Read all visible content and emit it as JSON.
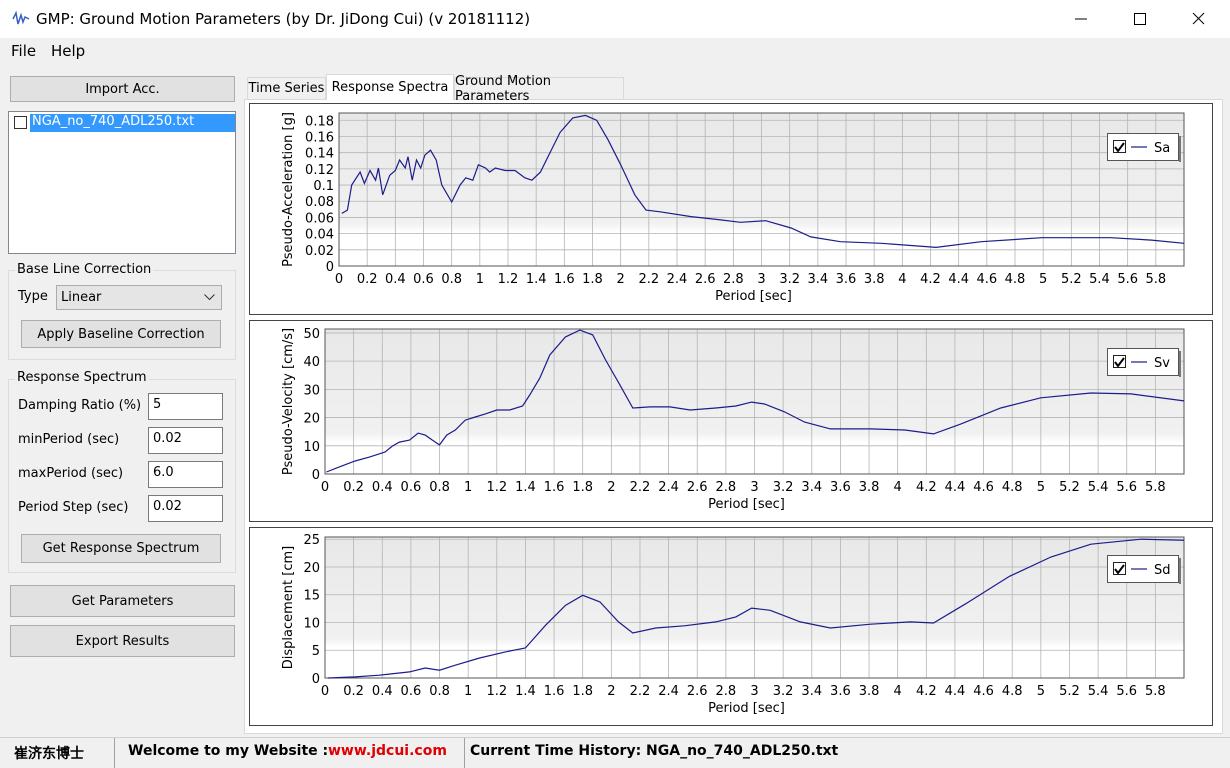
{
  "window": {
    "title": "GMP: Ground Motion Parameters (by Dr. JiDong Cui) (v 20181112)"
  },
  "menu": [
    "File",
    "Help"
  ],
  "left": {
    "import_button": "Import Acc.",
    "file_list": [
      "NGA_no_740_ADL250.txt"
    ],
    "baseline": {
      "title": "Base Line Correction",
      "type_label": "Type",
      "type_value": "Linear",
      "button": "Apply Baseline Correction"
    },
    "spectrum": {
      "title": "Response Spectrum",
      "fields": [
        {
          "label": "Damping Ratio (%)",
          "value": "5"
        },
        {
          "label": "minPeriod (sec)",
          "value": "0.02"
        },
        {
          "label": "maxPeriod (sec)",
          "value": "6.0"
        },
        {
          "label": "Period Step (sec)",
          "value": "0.02"
        }
      ],
      "button": "Get Response Spectrum"
    },
    "get_parameters": "Get Parameters",
    "export": "Export Results"
  },
  "tabs": [
    "Time Series",
    "Response Spectra",
    "Ground Motion Parameters"
  ],
  "active_tab": 1,
  "status": [
    "崔济东博士",
    "Welcome to my Website :",
    "www.jdcui.com",
    "Current Time History: NGA_no_740_ADL250.txt"
  ],
  "chart_data": [
    {
      "type": "line",
      "x_label": "Period [sec]",
      "y_label": "Pseudo-Acceleration [g]",
      "grid": true,
      "legend": "right",
      "x": [
        0.02,
        0.06,
        0.09,
        0.15,
        0.18,
        0.22,
        0.26,
        0.28,
        0.31,
        0.36,
        0.4,
        0.43,
        0.47,
        0.49,
        0.52,
        0.55,
        0.58,
        0.61,
        0.65,
        0.69,
        0.73,
        0.8,
        0.86,
        0.9,
        0.95,
        0.99,
        1.04,
        1.07,
        1.11,
        1.18,
        1.25,
        1.32,
        1.37,
        1.43,
        1.49,
        1.57,
        1.66,
        1.75,
        1.83,
        1.91,
        2.0,
        2.1,
        2.18,
        2.28,
        2.5,
        2.71,
        2.85,
        3.03,
        3.21,
        3.35,
        3.56,
        3.85,
        4.24,
        4.56,
        4.99,
        5.48,
        5.77,
        6.0
      ],
      "series": [
        {
          "name": "Sa",
          "color": "#1c1c8c",
          "values": [
            0.065,
            0.069,
            0.1,
            0.116,
            0.102,
            0.118,
            0.106,
            0.121,
            0.088,
            0.112,
            0.118,
            0.131,
            0.121,
            0.135,
            0.106,
            0.131,
            0.121,
            0.137,
            0.143,
            0.131,
            0.1,
            0.079,
            0.1,
            0.109,
            0.106,
            0.125,
            0.121,
            0.116,
            0.121,
            0.118,
            0.118,
            0.109,
            0.106,
            0.116,
            0.137,
            0.165,
            0.183,
            0.186,
            0.18,
            0.156,
            0.125,
            0.088,
            0.069,
            0.067,
            0.061,
            0.057,
            0.054,
            0.056,
            0.047,
            0.036,
            0.03,
            0.028,
            0.023,
            0.03,
            0.035,
            0.035,
            0.032,
            0.028
          ]
        }
      ],
      "xlim": [
        0,
        6
      ],
      "ylim": [
        0,
        0.189
      ],
      "xticks": [
        0,
        0.2,
        0.4,
        0.6,
        0.8,
        1,
        1.2,
        1.4,
        1.6,
        1.8,
        2,
        2.2,
        2.4,
        2.6,
        2.8,
        3,
        3.2,
        3.4,
        3.6,
        3.8,
        4,
        4.2,
        4.4,
        4.6,
        4.8,
        5,
        5.2,
        5.4,
        5.6,
        5.8
      ],
      "yticks": [
        0,
        0.02,
        0.04,
        0.06,
        0.08,
        0.1,
        0.12,
        0.14,
        0.16,
        0.18
      ]
    },
    {
      "type": "line",
      "x_label": "Period [sec]",
      "y_label": "Pseudo-Velocity [cm/s]",
      "grid": true,
      "legend": "right",
      "x": [
        0.01,
        0.1,
        0.21,
        0.31,
        0.42,
        0.47,
        0.52,
        0.59,
        0.65,
        0.7,
        0.75,
        0.8,
        0.85,
        0.91,
        0.98,
        1.05,
        1.12,
        1.2,
        1.29,
        1.38,
        1.43,
        1.5,
        1.57,
        1.68,
        1.78,
        1.87,
        1.96,
        2.06,
        2.15,
        2.27,
        2.41,
        2.55,
        2.73,
        2.87,
        2.98,
        3.07,
        3.21,
        3.35,
        3.53,
        3.81,
        4.05,
        4.25,
        4.44,
        4.72,
        5.0,
        5.35,
        5.63,
        6.0
      ],
      "series": [
        {
          "name": "Sv",
          "color": "#1c1c8c",
          "values": [
            0.7,
            2.5,
            4.6,
            6,
            7.8,
            9.9,
            11.3,
            12,
            14.5,
            13.8,
            12,
            10.3,
            13.8,
            15.6,
            19.1,
            20.2,
            21.3,
            22.7,
            22.7,
            24.1,
            28,
            34,
            42.2,
            48.6,
            51,
            49.3,
            40.4,
            31.6,
            23.4,
            23.8,
            23.8,
            22.7,
            23.4,
            24.1,
            25.5,
            24.8,
            22,
            18.4,
            16,
            16,
            15.6,
            14.2,
            17.7,
            23.4,
            27,
            28.7,
            28.4,
            25.9
          ]
        }
      ],
      "xlim": [
        0,
        6
      ],
      "ylim": [
        0,
        51.4
      ],
      "xticks": [
        0,
        0.2,
        0.4,
        0.6,
        0.8,
        1,
        1.2,
        1.4,
        1.6,
        1.8,
        2,
        2.2,
        2.4,
        2.6,
        2.8,
        3,
        3.2,
        3.4,
        3.6,
        3.8,
        4,
        4.2,
        4.4,
        4.6,
        4.8,
        5,
        5.2,
        5.4,
        5.6,
        5.8
      ],
      "yticks": [
        0,
        10,
        20,
        30,
        40,
        50
      ]
    },
    {
      "type": "line",
      "x_label": "Period [sec]",
      "y_label": "Displacement [cm]",
      "grid": true,
      "legend": "right",
      "x": [
        0.02,
        0.21,
        0.38,
        0.59,
        0.7,
        0.8,
        0.91,
        1.08,
        1.26,
        1.4,
        1.54,
        1.68,
        1.8,
        1.92,
        2.05,
        2.15,
        2.31,
        2.51,
        2.73,
        2.87,
        2.98,
        3.11,
        3.32,
        3.53,
        3.81,
        4.09,
        4.25,
        4.47,
        4.78,
        5.07,
        5.35,
        5.7,
        6.0
      ],
      "series": [
        {
          "name": "Sd",
          "color": "#1c1c8c",
          "values": [
            0,
            0.2,
            0.5,
            1.1,
            1.8,
            1.4,
            2.3,
            3.6,
            4.7,
            5.4,
            9.5,
            13.1,
            14.9,
            13.7,
            10.1,
            8.1,
            9.0,
            9.4,
            10.1,
            11.0,
            12.6,
            12.2,
            10.1,
            9.0,
            9.7,
            10.1,
            9.9,
            13.3,
            18.3,
            21.8,
            24.1,
            25.0,
            24.8
          ]
        }
      ],
      "xlim": [
        0,
        6
      ],
      "ylim": [
        0,
        25.4
      ],
      "xticks": [
        0,
        0.2,
        0.4,
        0.6,
        0.8,
        1,
        1.2,
        1.4,
        1.6,
        1.8,
        2,
        2.2,
        2.4,
        2.6,
        2.8,
        3,
        3.2,
        3.4,
        3.6,
        3.8,
        4,
        4.2,
        4.4,
        4.6,
        4.8,
        5,
        5.2,
        5.4,
        5.6,
        5.8
      ],
      "yticks": [
        0,
        5,
        10,
        15,
        20,
        25
      ]
    }
  ]
}
